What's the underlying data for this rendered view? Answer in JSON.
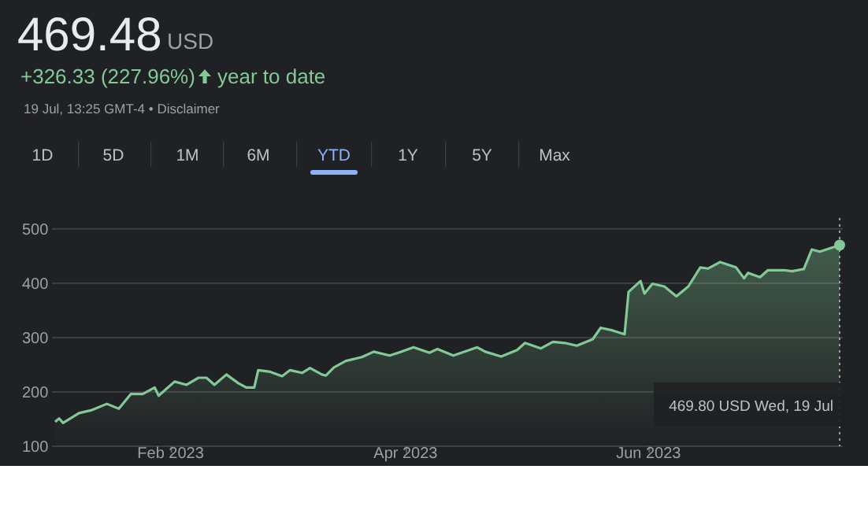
{
  "chart_data": {
    "type": "area",
    "title": "469.48",
    "annotations": [
      "USD",
      "+326.33 (227.96%)",
      "year to date",
      "19 Jul, 13:25 GMT-4 • Disclaimer",
      "1D",
      "5D",
      "1M",
      "6M",
      "YTD",
      "1Y",
      "5Y",
      "Max",
      "469.80 USD  Wed, 19 Jul"
    ],
    "xlim": [
      "2023-01-03",
      "2023-07-19"
    ],
    "xticks": [
      {
        "value": "2023-02-01",
        "label": "Feb 2023"
      },
      {
        "value": "2023-04-01",
        "label": "Apr 2023"
      },
      {
        "value": "2023-06-01",
        "label": "Jun 2023"
      }
    ],
    "ylim": [
      100,
      520
    ],
    "yticks": [
      100,
      200,
      300,
      400,
      500
    ],
    "grid": "y",
    "marker": "none",
    "line_style": "solid",
    "ref_lines": [
      {
        "axis": "x",
        "value": "2023-07-19",
        "label": null,
        "color": "#9aa0a6",
        "line_style": "dotted"
      }
    ],
    "series": [
      {
        "color": "#81c995",
        "x": [
          "2023-01-03",
          "2023-01-04",
          "2023-01-05",
          "2023-01-09",
          "2023-01-12",
          "2023-01-16",
          "2023-01-19",
          "2023-01-22",
          "2023-01-25",
          "2023-01-28",
          "2023-01-29",
          "2023-02-02",
          "2023-02-05",
          "2023-02-08",
          "2023-02-10",
          "2023-02-12",
          "2023-02-15",
          "2023-02-18",
          "2023-02-20",
          "2023-02-22",
          "2023-02-23",
          "2023-02-26",
          "2023-03-01",
          "2023-03-03",
          "2023-03-06",
          "2023-03-08",
          "2023-03-11",
          "2023-03-12",
          "2023-03-14",
          "2023-03-17",
          "2023-03-21",
          "2023-03-24",
          "2023-03-28",
          "2023-03-31",
          "2023-04-03",
          "2023-04-07",
          "2023-04-09",
          "2023-04-13",
          "2023-04-19",
          "2023-04-21",
          "2023-04-25",
          "2023-04-29",
          "2023-05-01",
          "2023-05-05",
          "2023-05-08",
          "2023-05-11",
          "2023-05-14",
          "2023-05-18",
          "2023-05-20",
          "2023-05-23",
          "2023-05-26",
          "2023-05-27",
          "2023-05-30",
          "2023-05-31",
          "2023-06-02",
          "2023-06-05",
          "2023-06-08",
          "2023-06-11",
          "2023-06-14",
          "2023-06-16",
          "2023-06-19",
          "2023-06-23",
          "2023-06-25",
          "2023-06-26",
          "2023-06-29",
          "2023-07-01",
          "2023-07-05",
          "2023-07-07",
          "2023-07-10",
          "2023-07-12",
          "2023-07-14",
          "2023-07-19"
        ],
        "values": [
          145,
          151,
          143,
          161,
          166,
          178,
          169,
          196,
          196,
          208,
          193,
          219,
          213,
          226,
          226,
          213,
          232,
          216,
          208,
          208,
          240,
          237,
          229,
          240,
          235,
          244,
          232,
          230,
          245,
          257,
          264,
          274,
          267,
          274,
          282,
          272,
          279,
          267,
          282,
          274,
          265,
          277,
          290,
          280,
          292,
          290,
          285,
          297,
          318,
          313,
          306,
          384,
          404,
          381,
          399,
          394,
          376,
          394,
          429,
          427,
          439,
          429,
          409,
          419,
          411,
          424,
          424,
          422,
          426,
          462,
          458,
          470
        ]
      }
    ]
  }
}
